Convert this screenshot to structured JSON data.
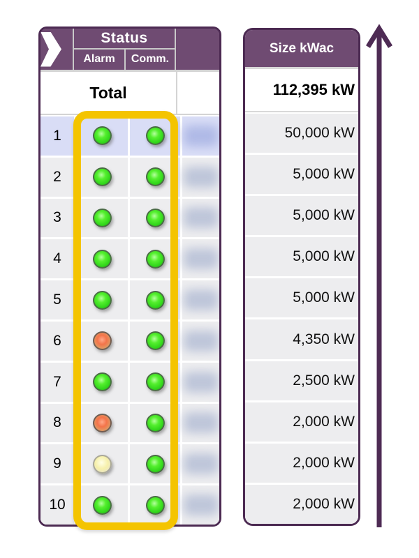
{
  "status_table": {
    "header": {
      "status": "Status",
      "alarm": "Alarm",
      "comm": "Comm."
    },
    "total_label": "Total",
    "rows": [
      {
        "num": "1",
        "alarm": "green",
        "comm": "green",
        "selected": true
      },
      {
        "num": "2",
        "alarm": "green",
        "comm": "green",
        "selected": false
      },
      {
        "num": "3",
        "alarm": "green",
        "comm": "green",
        "selected": false
      },
      {
        "num": "4",
        "alarm": "green",
        "comm": "green",
        "selected": false
      },
      {
        "num": "5",
        "alarm": "green",
        "comm": "green",
        "selected": false
      },
      {
        "num": "6",
        "alarm": "orange",
        "comm": "green",
        "selected": false
      },
      {
        "num": "7",
        "alarm": "green",
        "comm": "green",
        "selected": false
      },
      {
        "num": "8",
        "alarm": "orange",
        "comm": "green",
        "selected": false
      },
      {
        "num": "9",
        "alarm": "yellow",
        "comm": "green",
        "selected": false
      },
      {
        "num": "10",
        "alarm": "green",
        "comm": "green",
        "selected": false
      }
    ]
  },
  "size_table": {
    "header": "Size kWac",
    "total": "112,395 kW",
    "values": [
      "50,000 kW",
      "5,000 kW",
      "5,000 kW",
      "5,000 kW",
      "5,000 kW",
      "4,350 kW",
      "2,500 kW",
      "2,000 kW",
      "2,000 kW",
      "2,000 kW"
    ]
  },
  "icons": {
    "chevron_right": "chevron-right-icon",
    "up_arrow": "up-arrow-icon",
    "led_green": "green-led-icon",
    "led_orange": "orange-led-icon",
    "led_yellow": "yellow-led-icon"
  },
  "colors": {
    "header_purple": "#6F4B72",
    "border_purple": "#4C2A52",
    "arrow_purple": "#4E2B54",
    "highlight_yellow": "#F4C400",
    "selected_row": "#D9DDF6",
    "row_gray": "#EDEDEF",
    "led_green": "#30D51A",
    "led_orange": "#F4744A",
    "led_yellow": "#F6F0AB"
  }
}
